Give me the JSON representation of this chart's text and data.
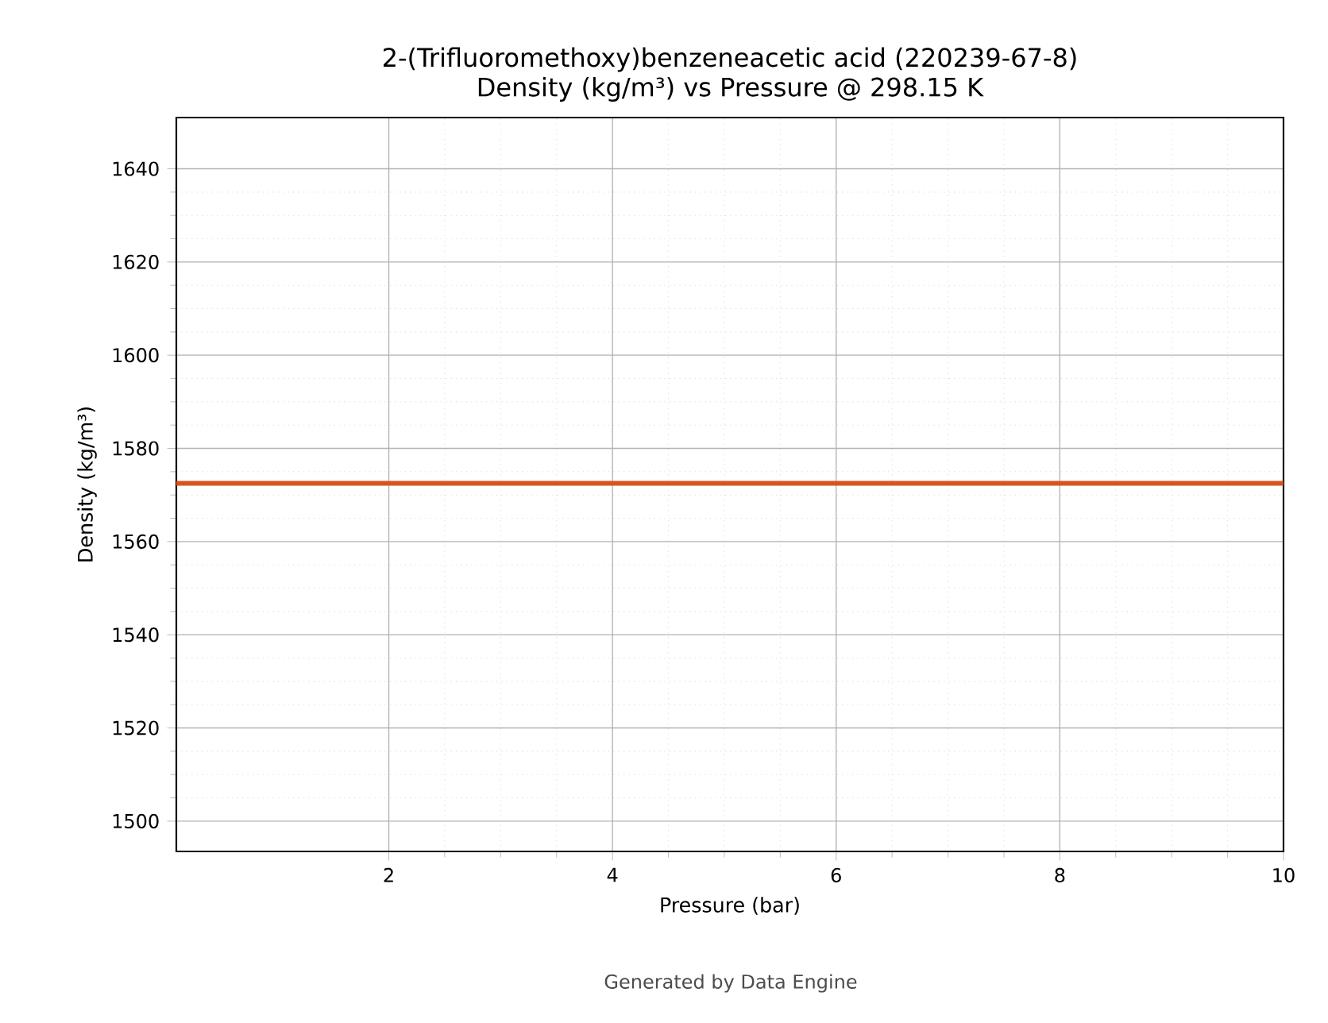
{
  "chart_data": {
    "type": "line",
    "title": "2-(Trifluoromethoxy)benzeneacetic acid (220239-67-8)\nDensity (kg/m³) vs Pressure @ 298.15 K",
    "xlabel": "Pressure (bar)",
    "ylabel": "Density (kg/m³)",
    "x": [
      0.1,
      10
    ],
    "series": [
      {
        "color": "#d9531e",
        "values": [
          1572.5,
          1572.5
        ]
      }
    ],
    "xlim": [
      0.1,
      10
    ],
    "ylim": [
      1493.5,
      1651
    ],
    "xticks": [
      2,
      4,
      6,
      8,
      10
    ],
    "yticks": [
      1500,
      1520,
      1540,
      1560,
      1580,
      1600,
      1620,
      1640
    ],
    "grid": true,
    "annotations": [
      "Generated by Data Engine"
    ]
  }
}
